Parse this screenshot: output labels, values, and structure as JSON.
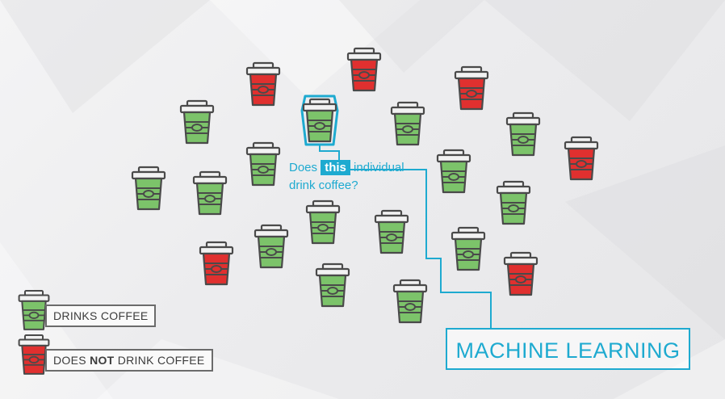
{
  "colors": {
    "drinks": "#7cc36a",
    "not_drink": "#e0302f",
    "outline": "#4a4a4a",
    "lid": "#f2f2f2",
    "accent": "#1eaad0"
  },
  "question": {
    "prefix": "Does",
    "highlight": "this",
    "suffix": "individual",
    "line2": "drink coffee?"
  },
  "machine_learning_label": "MACHINE LEARNING",
  "legend": {
    "drinks_label": "DRINKS COFFEE",
    "not_drink_prefix": "DOES ",
    "not_drink_bold": "NOT",
    "not_drink_suffix": " DRINK COFFEE"
  },
  "cups": [
    {
      "type": "not_drink"
    },
    {
      "type": "not_drink"
    },
    {
      "type": "not_drink"
    },
    {
      "type": "drinks"
    },
    {
      "type": "drinks"
    },
    {
      "type": "drinks"
    },
    {
      "type": "drinks"
    },
    {
      "type": "drinks"
    },
    {
      "type": "not_drink"
    },
    {
      "type": "drinks"
    },
    {
      "type": "drinks"
    },
    {
      "type": "drinks"
    },
    {
      "type": "drinks"
    },
    {
      "type": "drinks"
    },
    {
      "type": "drinks"
    },
    {
      "type": "drinks"
    },
    {
      "type": "drinks"
    },
    {
      "type": "drinks"
    },
    {
      "type": "not_drink"
    },
    {
      "type": "drinks"
    },
    {
      "type": "drinks"
    },
    {
      "type": "not_drink"
    }
  ],
  "selected_cup": {
    "type": "drinks"
  }
}
